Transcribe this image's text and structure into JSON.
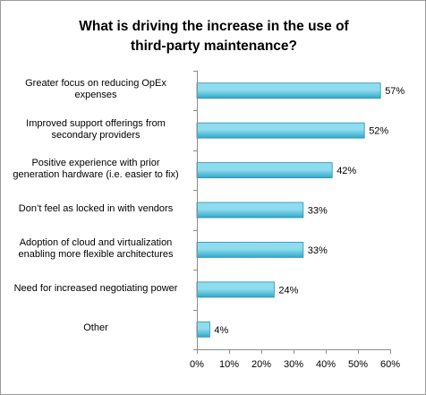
{
  "chart_data": {
    "type": "bar",
    "orientation": "horizontal",
    "title_lines": [
      "What is driving the increase in the use of",
      "third-party maintenance?"
    ],
    "categories": [
      [
        "Greater focus on reducing OpEx",
        "expenses"
      ],
      [
        "Improved support offerings from",
        "secondary providers"
      ],
      [
        "Positive experience with prior",
        "generation hardware (i.e. easier to fix)"
      ],
      [
        "Don’t feel as locked in with vendors"
      ],
      [
        "Adoption of cloud and virtualization",
        "enabling more flexible architectures"
      ],
      [
        "Need for increased negotiating power"
      ],
      [
        "Other"
      ]
    ],
    "values": [
      57,
      52,
      42,
      33,
      33,
      24,
      4
    ],
    "value_labels": [
      "57%",
      "52%",
      "42%",
      "33%",
      "33%",
      "24%",
      "4%"
    ],
    "xlim": [
      0,
      60
    ],
    "x_ticks": [
      "0%",
      "10%",
      "20%",
      "30%",
      "40%",
      "50%",
      "60%"
    ],
    "grid": false,
    "legend": "none",
    "colors": {
      "bar_top": "#8fdcef",
      "bar_bottom": "#2fa9c9",
      "bar_stroke": "#2a8fae",
      "axis": "#8c8c8c"
    }
  }
}
